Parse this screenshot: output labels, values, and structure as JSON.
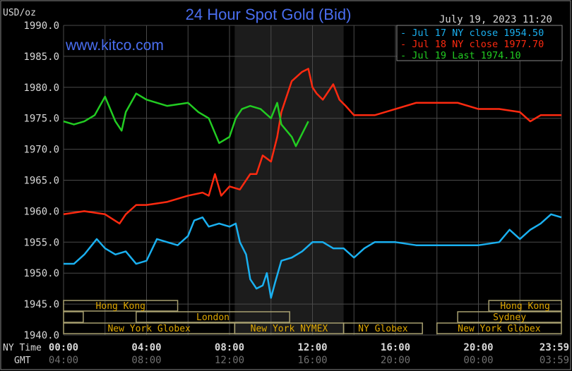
{
  "chart_data": {
    "type": "line",
    "title": "24 Hour Spot Gold (Bid)",
    "ylabel": "USD/oz",
    "watermark": "www.kitco.com",
    "timestamp": "July 19, 2023 11:20",
    "ylim": [
      1940,
      1990
    ],
    "xlim": [
      0,
      24
    ],
    "y_ticks": [
      "1940.0",
      "1945.0",
      "1950.0",
      "1955.0",
      "1960.0",
      "1965.0",
      "1970.0",
      "1975.0",
      "1980.0",
      "1985.0",
      "1990.0"
    ],
    "x_row_labels": [
      "NY Time",
      "GMT"
    ],
    "x_ticks_ny": [
      "00:00",
      "04:00",
      "08:00",
      "12:00",
      "16:00",
      "20:00",
      "23:59"
    ],
    "x_ticks_gmt": [
      "04:00",
      "08:00",
      "12:00",
      "16:00",
      "20:00",
      "00:00",
      "03:59"
    ],
    "grid": true,
    "legend_position": "top-right",
    "highlight_range_hours": [
      8.25,
      13.5
    ],
    "series": [
      {
        "name": "Jul 17 NY close 1954.50",
        "color": "#1ab0f0",
        "points": [
          [
            0,
            1951.5
          ],
          [
            0.5,
            1951.5
          ],
          [
            1,
            1953
          ],
          [
            1.6,
            1955.5
          ],
          [
            2,
            1954
          ],
          [
            2.5,
            1953
          ],
          [
            3,
            1953.5
          ],
          [
            3.5,
            1951.5
          ],
          [
            4,
            1952
          ],
          [
            4.5,
            1955.5
          ],
          [
            5,
            1955
          ],
          [
            5.5,
            1954.5
          ],
          [
            6,
            1956
          ],
          [
            6.3,
            1958.5
          ],
          [
            6.7,
            1959
          ],
          [
            7,
            1957.5
          ],
          [
            7.5,
            1958
          ],
          [
            8,
            1957.5
          ],
          [
            8.3,
            1958
          ],
          [
            8.5,
            1955
          ],
          [
            8.8,
            1953
          ],
          [
            9,
            1949
          ],
          [
            9.3,
            1947.5
          ],
          [
            9.6,
            1948
          ],
          [
            9.8,
            1950
          ],
          [
            10,
            1946
          ],
          [
            10.2,
            1948.5
          ],
          [
            10.5,
            1952
          ],
          [
            11,
            1952.5
          ],
          [
            11.5,
            1953.5
          ],
          [
            12,
            1955
          ],
          [
            12.5,
            1955
          ],
          [
            13,
            1954
          ],
          [
            13.5,
            1954
          ],
          [
            14,
            1952.5
          ],
          [
            14.5,
            1954
          ],
          [
            15,
            1955
          ],
          [
            16,
            1955
          ],
          [
            17,
            1954.5
          ],
          [
            18,
            1954.5
          ],
          [
            19,
            1954.5
          ],
          [
            20,
            1954.5
          ],
          [
            21,
            1955
          ],
          [
            21.5,
            1957
          ],
          [
            22,
            1955.5
          ],
          [
            22.5,
            1957
          ],
          [
            23,
            1958
          ],
          [
            23.5,
            1959.5
          ],
          [
            24,
            1959
          ]
        ]
      },
      {
        "name": "Jul 18 NY close 1977.70",
        "color": "#ff2a10",
        "points": [
          [
            0,
            1959.5
          ],
          [
            1,
            1960
          ],
          [
            2,
            1959.5
          ],
          [
            2.7,
            1958
          ],
          [
            3,
            1959.5
          ],
          [
            3.5,
            1961
          ],
          [
            4,
            1961
          ],
          [
            5,
            1961.5
          ],
          [
            6,
            1962.5
          ],
          [
            6.7,
            1963
          ],
          [
            7,
            1962.5
          ],
          [
            7.3,
            1966
          ],
          [
            7.6,
            1962.5
          ],
          [
            8,
            1964
          ],
          [
            8.5,
            1963.5
          ],
          [
            9,
            1966
          ],
          [
            9.3,
            1966
          ],
          [
            9.6,
            1969
          ],
          [
            10,
            1968
          ],
          [
            10.3,
            1972
          ],
          [
            10.5,
            1976
          ],
          [
            10.8,
            1979
          ],
          [
            11,
            1981
          ],
          [
            11.5,
            1982.5
          ],
          [
            11.8,
            1983
          ],
          [
            12,
            1980
          ],
          [
            12.2,
            1979
          ],
          [
            12.5,
            1978
          ],
          [
            13,
            1980.5
          ],
          [
            13.3,
            1978
          ],
          [
            13.6,
            1977
          ],
          [
            14,
            1975.5
          ],
          [
            15,
            1975.5
          ],
          [
            16,
            1976.5
          ],
          [
            17,
            1977.5
          ],
          [
            18,
            1977.5
          ],
          [
            19,
            1977.5
          ],
          [
            20,
            1976.5
          ],
          [
            21,
            1976.5
          ],
          [
            22,
            1976
          ],
          [
            22.5,
            1974.5
          ],
          [
            23,
            1975.5
          ],
          [
            24,
            1975.5
          ]
        ]
      },
      {
        "name": "Jul 19 Last 1974.10",
        "color": "#22cc22",
        "points": [
          [
            0,
            1974.5
          ],
          [
            0.5,
            1974
          ],
          [
            1,
            1974.5
          ],
          [
            1.5,
            1975.5
          ],
          [
            2,
            1978.5
          ],
          [
            2.5,
            1974.5
          ],
          [
            2.8,
            1973
          ],
          [
            3,
            1976
          ],
          [
            3.5,
            1979
          ],
          [
            4,
            1978
          ],
          [
            5,
            1977
          ],
          [
            6,
            1977.5
          ],
          [
            6.5,
            1976
          ],
          [
            7,
            1975
          ],
          [
            7.5,
            1971
          ],
          [
            8,
            1972
          ],
          [
            8.3,
            1975
          ],
          [
            8.6,
            1976.5
          ],
          [
            9,
            1977
          ],
          [
            9.5,
            1976.5
          ],
          [
            10,
            1975
          ],
          [
            10.3,
            1977.5
          ],
          [
            10.5,
            1974
          ],
          [
            11,
            1972
          ],
          [
            11.2,
            1970.5
          ],
          [
            11.5,
            1972.5
          ],
          [
            11.8,
            1974.5
          ]
        ]
      }
    ],
    "sessions": [
      {
        "label": "Hong Kong",
        "row": 0,
        "start": 0,
        "end": 5.5
      },
      {
        "label": "Hong Kong",
        "row": 0,
        "start": 20.5,
        "end": 24
      },
      {
        "label": "",
        "row": 1,
        "start": 0,
        "end": 0.95
      },
      {
        "label": "London",
        "row": 1,
        "start": 3.5,
        "end": 10.9
      },
      {
        "label": "Sydney",
        "row": 1,
        "start": 19,
        "end": 24
      },
      {
        "label": "New York Globex",
        "row": 2,
        "start": 0,
        "end": 8.25
      },
      {
        "label": "New York NYMEX",
        "row": 2,
        "start": 8.25,
        "end": 13.5
      },
      {
        "label": "NY Globex",
        "row": 2,
        "start": 13.5,
        "end": 17.3
      },
      {
        "label": "New York Globex",
        "row": 2,
        "start": 18,
        "end": 24
      }
    ],
    "colors": {
      "background": "#000000",
      "grid": "#4a4a4a",
      "axis_text": "#d8d8d8",
      "gmt_text": "#707070",
      "title": "#4a6ef0",
      "session": "#e0a800",
      "session_box": "#a8a070"
    }
  }
}
